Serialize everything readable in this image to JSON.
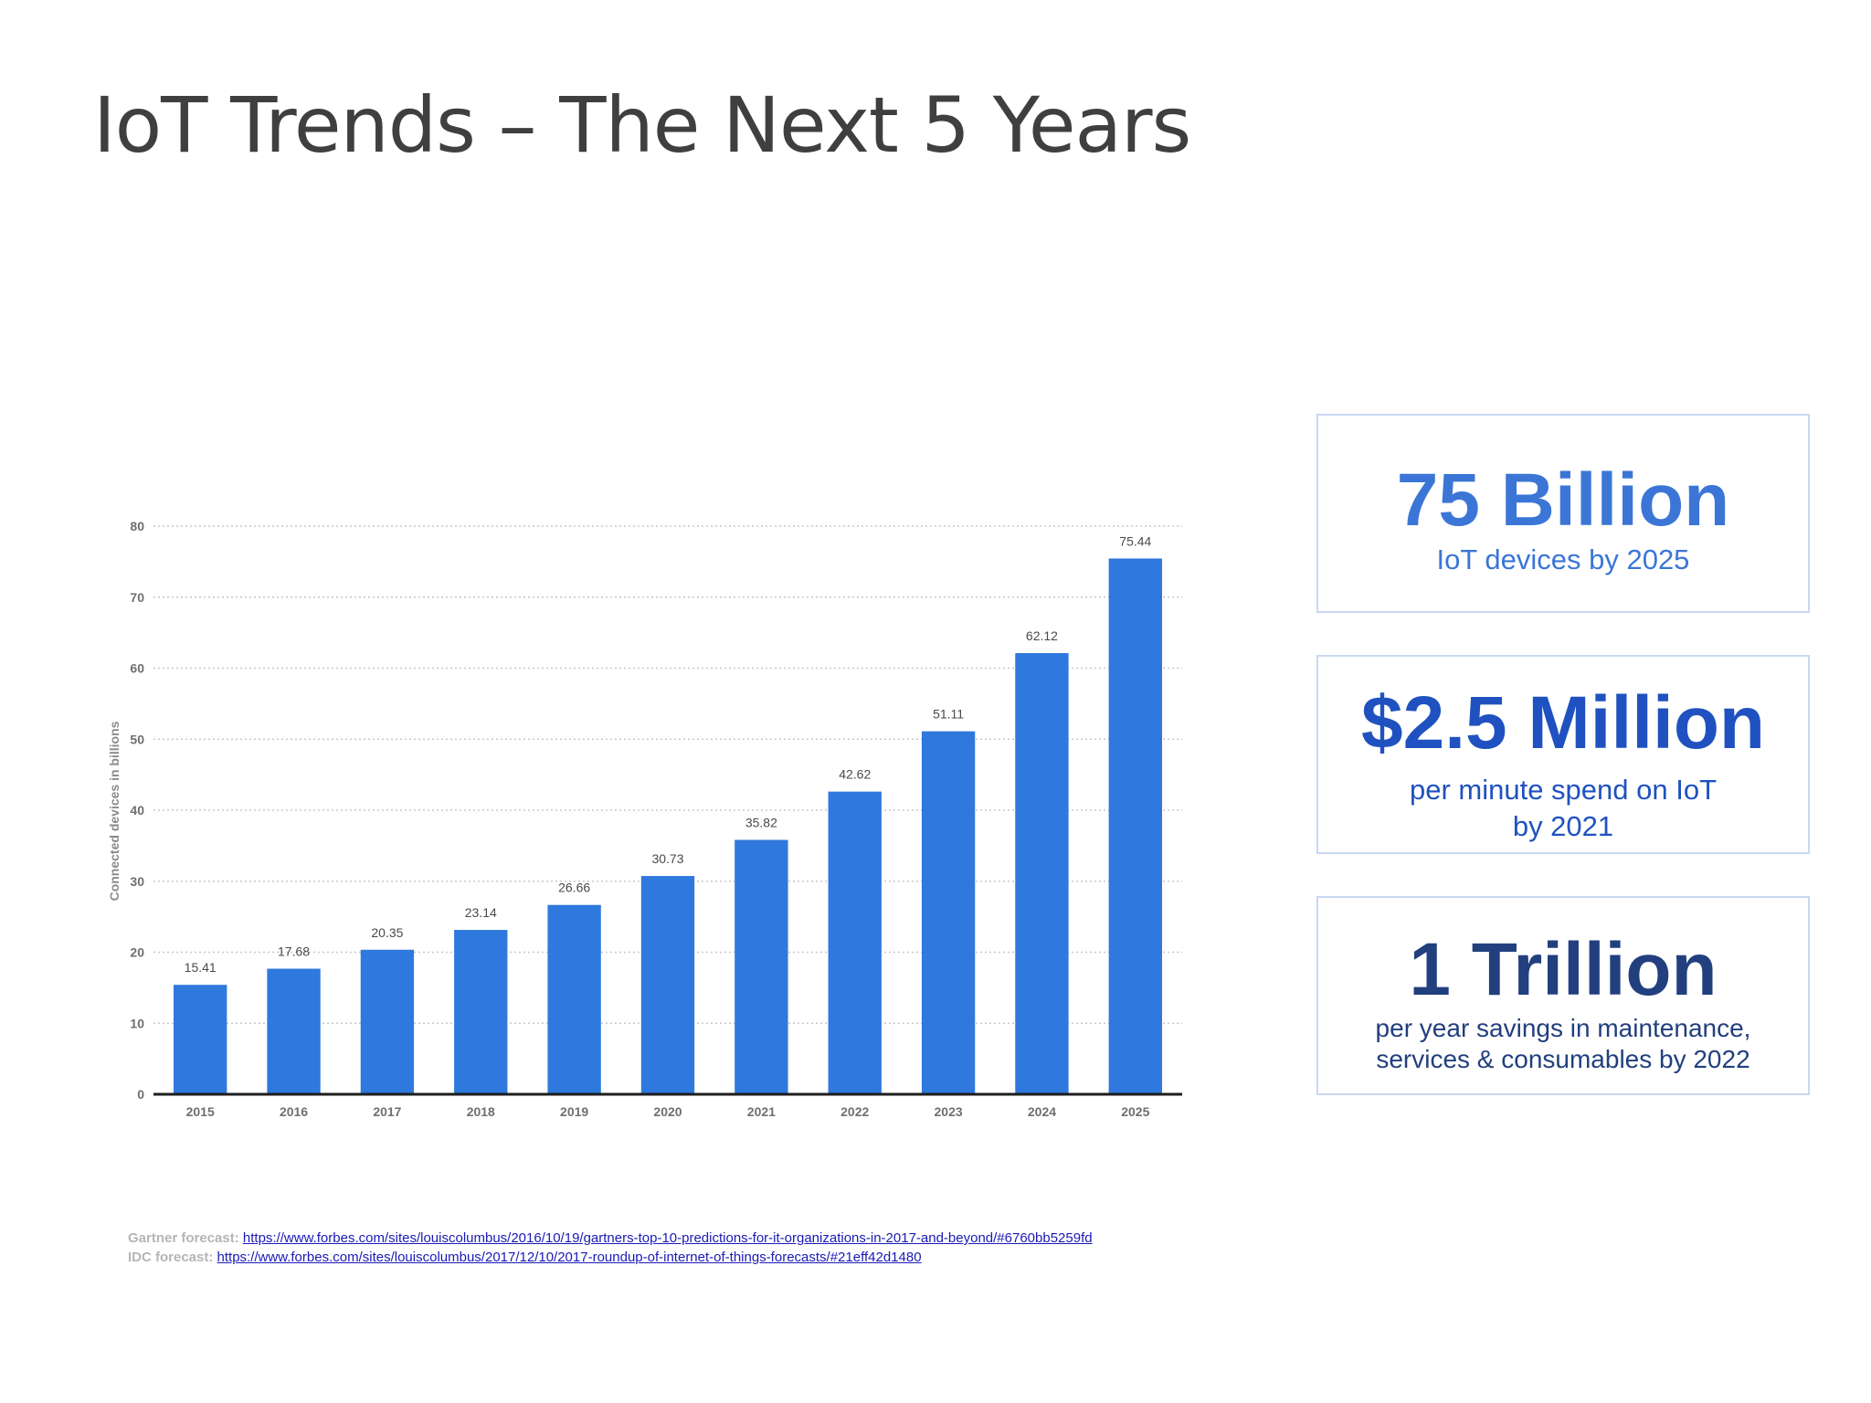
{
  "slide": {
    "title": "IoT Trends – The Next 5 Years"
  },
  "chart_data": {
    "type": "bar",
    "categories": [
      "2015",
      "2016",
      "2017",
      "2018",
      "2019",
      "2020",
      "2021",
      "2022",
      "2023",
      "2024",
      "2025"
    ],
    "values": [
      15.41,
      17.68,
      20.35,
      23.14,
      26.66,
      30.73,
      35.82,
      42.62,
      51.11,
      62.12,
      75.44
    ],
    "value_labels": [
      "15.41",
      "17.68",
      "20.35",
      "23.14",
      "26.66",
      "30.73",
      "35.82",
      "42.62",
      "51.11",
      "62.12",
      "75.44"
    ],
    "y_ticks": [
      0,
      10,
      20,
      30,
      40,
      50,
      60,
      70,
      80
    ],
    "ylim": [
      0,
      80
    ],
    "ylabel": "Connected devices in billions",
    "xlabel": "",
    "title": "",
    "grid": true,
    "bar_color": "#2f78dd"
  },
  "stats": [
    {
      "big": "75 Billion",
      "lines": [
        "IoT devices by 2025"
      ]
    },
    {
      "big": "$2.5 Million",
      "lines": [
        "per minute spend on IoT",
        "by 2021"
      ]
    },
    {
      "big": "1 Trillion",
      "lines": [
        "per year savings in maintenance,",
        "services & consumables by 2022"
      ]
    }
  ],
  "sources": [
    {
      "label": "Gartner forecast:",
      "url": "https://www.forbes.com/sites/louiscolumbus/2016/10/19/gartners-top-10-predictions-for-it-organizations-in-2017-and-beyond/#6760bb5259fd"
    },
    {
      "label": "IDC forecast:",
      "url": "https://www.forbes.com/sites/louiscolumbus/2017/12/10/2017-roundup-of-internet-of-things-forecasts/#21eff42d1480"
    }
  ]
}
